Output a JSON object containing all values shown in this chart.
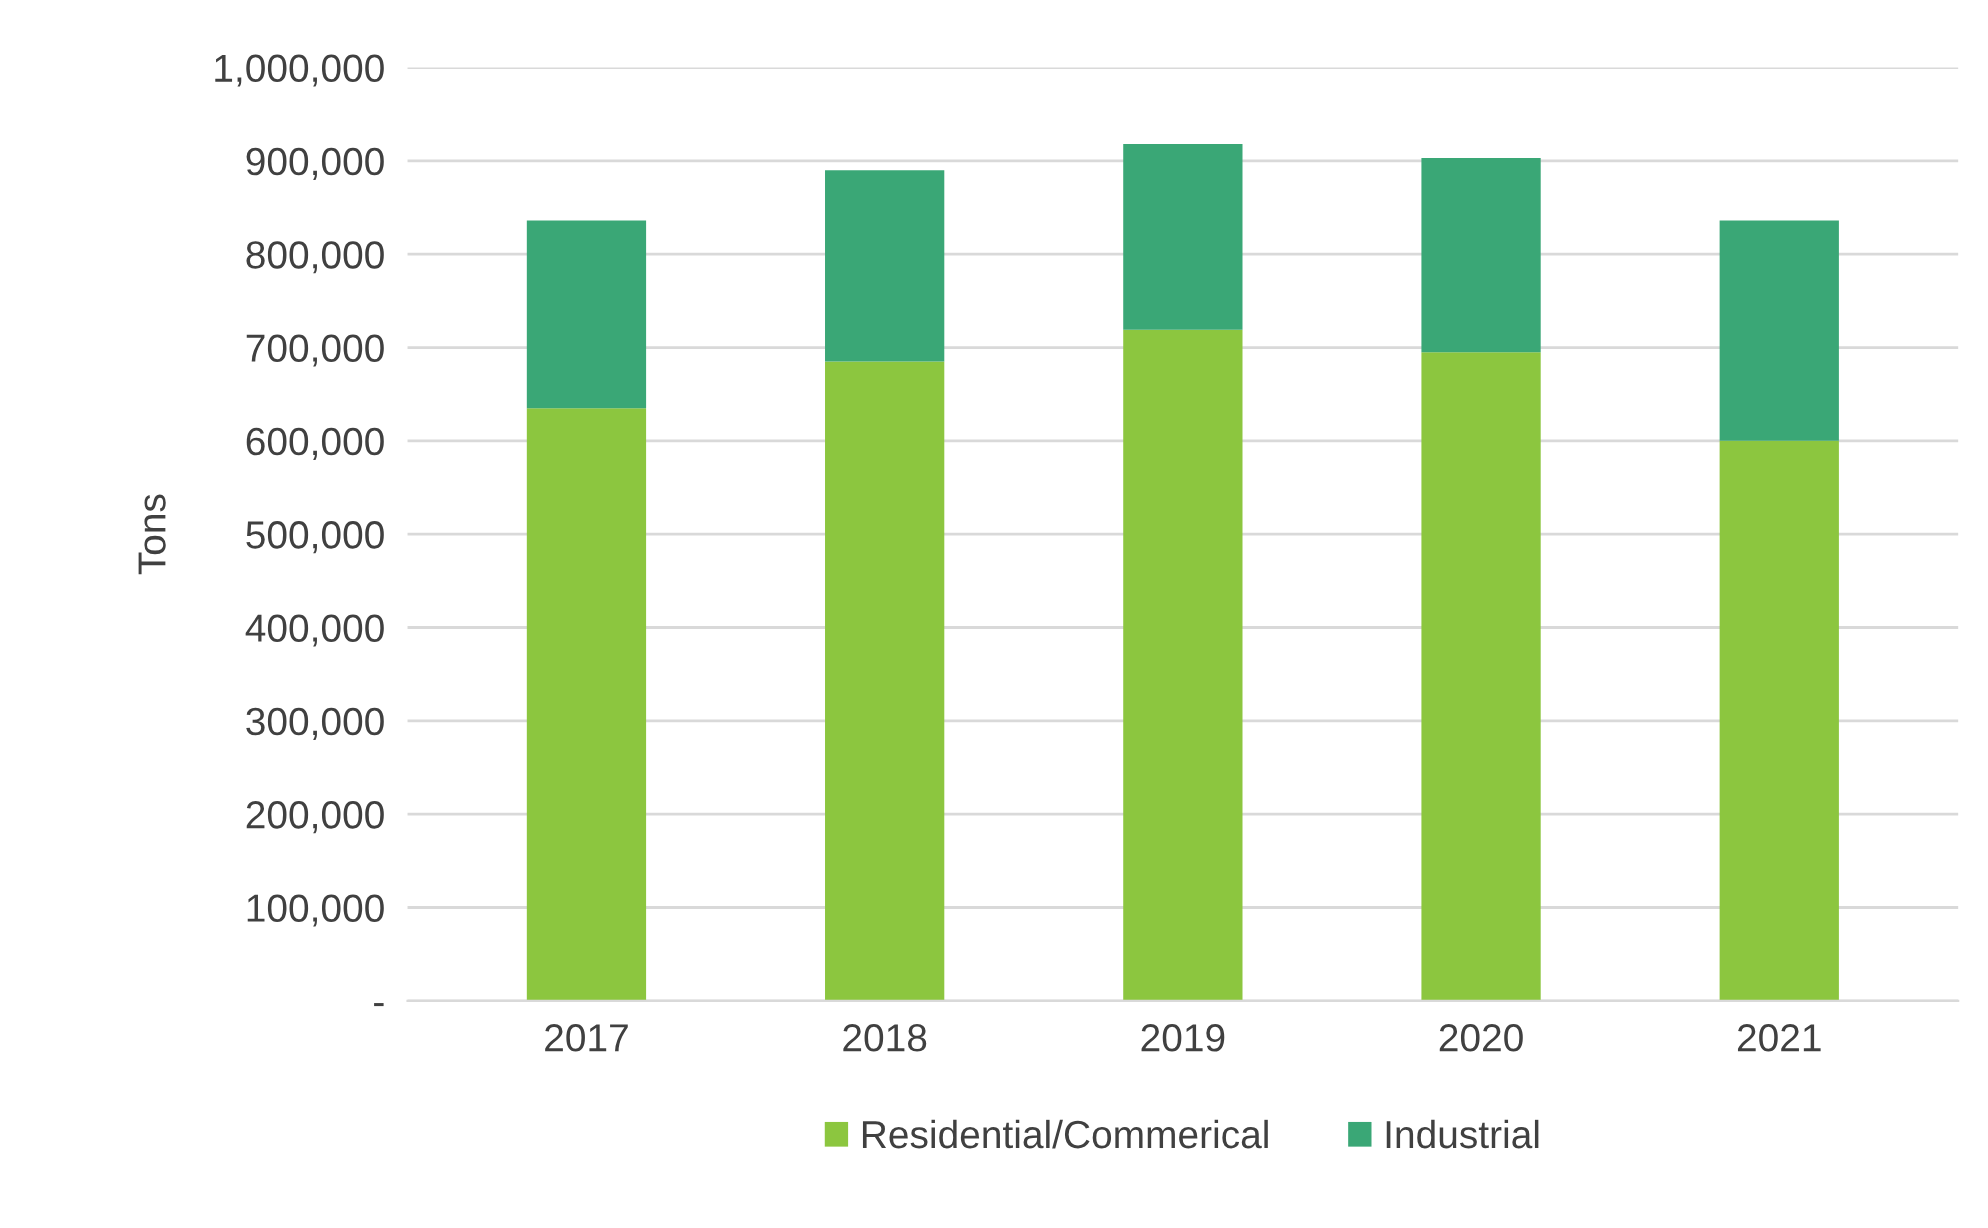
{
  "chart_data": {
    "type": "bar",
    "stacked": true,
    "ylabel": "Tons",
    "categories": [
      "2017",
      "2018",
      "2019",
      "2020",
      "2021"
    ],
    "series": [
      {
        "name": "Residential/Commerical",
        "color": "#8cc63f",
        "values": [
          635000,
          685000,
          719000,
          695000,
          600000
        ]
      },
      {
        "name": "Industrial",
        "color": "#3aa776",
        "values": [
          201000,
          205000,
          199000,
          208000,
          236000
        ]
      }
    ],
    "ylim": [
      0,
      1000000
    ],
    "yticks": [
      {
        "value": 0,
        "label": "-"
      },
      {
        "value": 100000,
        "label": "100,000"
      },
      {
        "value": 200000,
        "label": "200,000"
      },
      {
        "value": 300000,
        "label": "300,000"
      },
      {
        "value": 400000,
        "label": "400,000"
      },
      {
        "value": 500000,
        "label": "500,000"
      },
      {
        "value": 600000,
        "label": "600,000"
      },
      {
        "value": 700000,
        "label": "700,000"
      },
      {
        "value": 800000,
        "label": "800,000"
      },
      {
        "value": 900000,
        "label": "900,000"
      },
      {
        "value": 1000000,
        "label": "1,000,000"
      }
    ],
    "grid": "y",
    "legend": "bottom"
  }
}
